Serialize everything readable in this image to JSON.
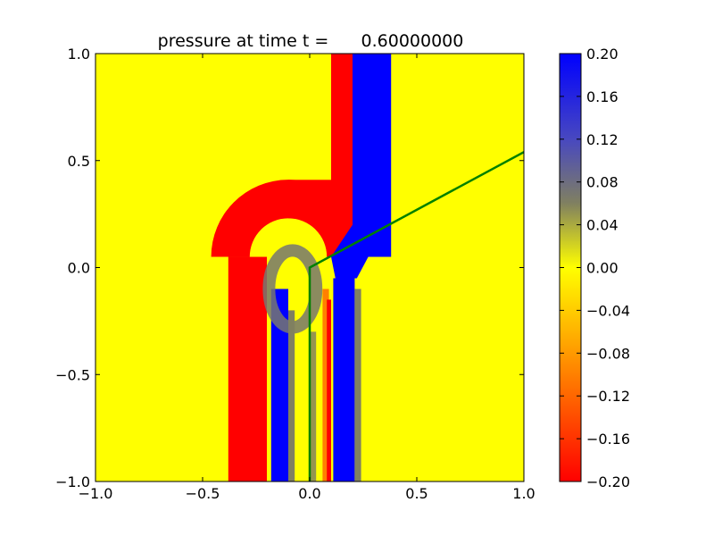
{
  "chart_data": {
    "type": "heatmap",
    "title": "pressure at time t =      0.60000000",
    "xlabel": "",
    "ylabel": "",
    "xlim": [
      -1.0,
      1.0
    ],
    "ylim": [
      -1.0,
      1.0
    ],
    "x_ticks": [
      -1.0,
      -0.5,
      0.0,
      0.5,
      1.0
    ],
    "x_tick_labels": [
      "−1.0",
      "−0.5",
      "0.0",
      "0.5",
      "1.0"
    ],
    "y_ticks": [
      -1.0,
      -0.5,
      0.0,
      0.5,
      1.0
    ],
    "y_tick_labels": [
      "−1.0",
      "−0.5",
      "0.0",
      "0.5",
      "1.0"
    ],
    "grid": false,
    "colorbar": {
      "vmin": -0.2,
      "vmax": 0.2,
      "ticks": [
        0.2,
        0.16,
        0.12,
        0.08,
        0.04,
        0.0,
        -0.04,
        -0.08,
        -0.12,
        -0.16,
        -0.2
      ],
      "tick_labels": [
        "0.20",
        "0.16",
        "0.12",
        "0.08",
        "0.04",
        "0.00",
        "−0.04",
        "−0.08",
        "−0.12",
        "−0.16",
        "−0.20"
      ],
      "stops": [
        {
          "value": -0.2,
          "color": "#ff0000"
        },
        {
          "value": -0.1,
          "color": "#ff8000"
        },
        {
          "value": 0.0,
          "color": "#ffff00"
        },
        {
          "value": 0.06,
          "color": "#808060"
        },
        {
          "value": 0.12,
          "color": "#4848c0"
        },
        {
          "value": 0.2,
          "color": "#0000ff"
        }
      ]
    },
    "background_value": 0.0,
    "regions": [
      {
        "name": "red-left-outer-strip",
        "value": -0.2,
        "shape": "rect",
        "x": [
          -0.38,
          -0.2
        ],
        "y": [
          -1.0,
          0.05
        ]
      },
      {
        "name": "red-arc",
        "value": -0.2,
        "shape": "ring-top",
        "center": [
          -0.1,
          0.05
        ],
        "r_outer": 0.36,
        "r_inner": 0.18
      },
      {
        "name": "red-top-band",
        "value": -0.2,
        "shape": "rect",
        "x": [
          -0.1,
          0.16
        ],
        "y": [
          0.23,
          0.41
        ]
      },
      {
        "name": "red-upper-column",
        "value": -0.2,
        "shape": "rect",
        "x": [
          0.1,
          0.2
        ],
        "y": [
          0.23,
          1.0
        ]
      },
      {
        "name": "blue-upper-column",
        "value": 0.2,
        "shape": "rect",
        "x": [
          0.2,
          0.38
        ],
        "y": [
          0.05,
          1.0
        ]
      },
      {
        "name": "blue-diagonal",
        "value": 0.2,
        "shape": "polygon",
        "points": [
          [
            0.1,
            0.05
          ],
          [
            0.2,
            0.2
          ],
          [
            0.38,
            0.25
          ],
          [
            0.22,
            -0.05
          ],
          [
            0.12,
            -0.05
          ]
        ]
      },
      {
        "name": "blue-lower-column",
        "value": 0.2,
        "shape": "rect",
        "x": [
          0.11,
          0.21
        ],
        "y": [
          -1.0,
          -0.05
        ]
      },
      {
        "name": "blue-left-inner-strip",
        "value": 0.2,
        "shape": "rect",
        "x": [
          -0.18,
          -0.1
        ],
        "y": [
          -1.0,
          -0.1
        ]
      },
      {
        "name": "gray-inner-ring",
        "value": 0.07,
        "shape": "ellipse",
        "center": [
          -0.08,
          -0.1
        ],
        "radii": [
          0.11,
          0.18
        ]
      },
      {
        "name": "gray-strip-a",
        "value": 0.06,
        "shape": "rect",
        "x": [
          -0.1,
          -0.07
        ],
        "y": [
          -1.0,
          -0.2
        ]
      },
      {
        "name": "gray-strip-b",
        "value": 0.06,
        "shape": "rect",
        "x": [
          0.21,
          0.24
        ],
        "y": [
          -1.0,
          -0.1
        ]
      },
      {
        "name": "orange-strip-a",
        "value": -0.1,
        "shape": "rect",
        "x": [
          0.06,
          0.09
        ],
        "y": [
          -1.0,
          -0.1
        ]
      },
      {
        "name": "red-strip-b",
        "value": -0.2,
        "shape": "rect",
        "x": [
          0.08,
          0.1
        ],
        "y": [
          -1.0,
          -0.15
        ]
      },
      {
        "name": "gray-strip-c",
        "value": 0.05,
        "shape": "rect",
        "x": [
          0.0,
          0.03
        ],
        "y": [
          -1.0,
          -0.3
        ]
      }
    ],
    "overlay_line": {
      "color": "#008000",
      "points": [
        [
          0.0,
          -1.0
        ],
        [
          0.0,
          0.0
        ],
        [
          1.0,
          0.54
        ]
      ]
    }
  }
}
